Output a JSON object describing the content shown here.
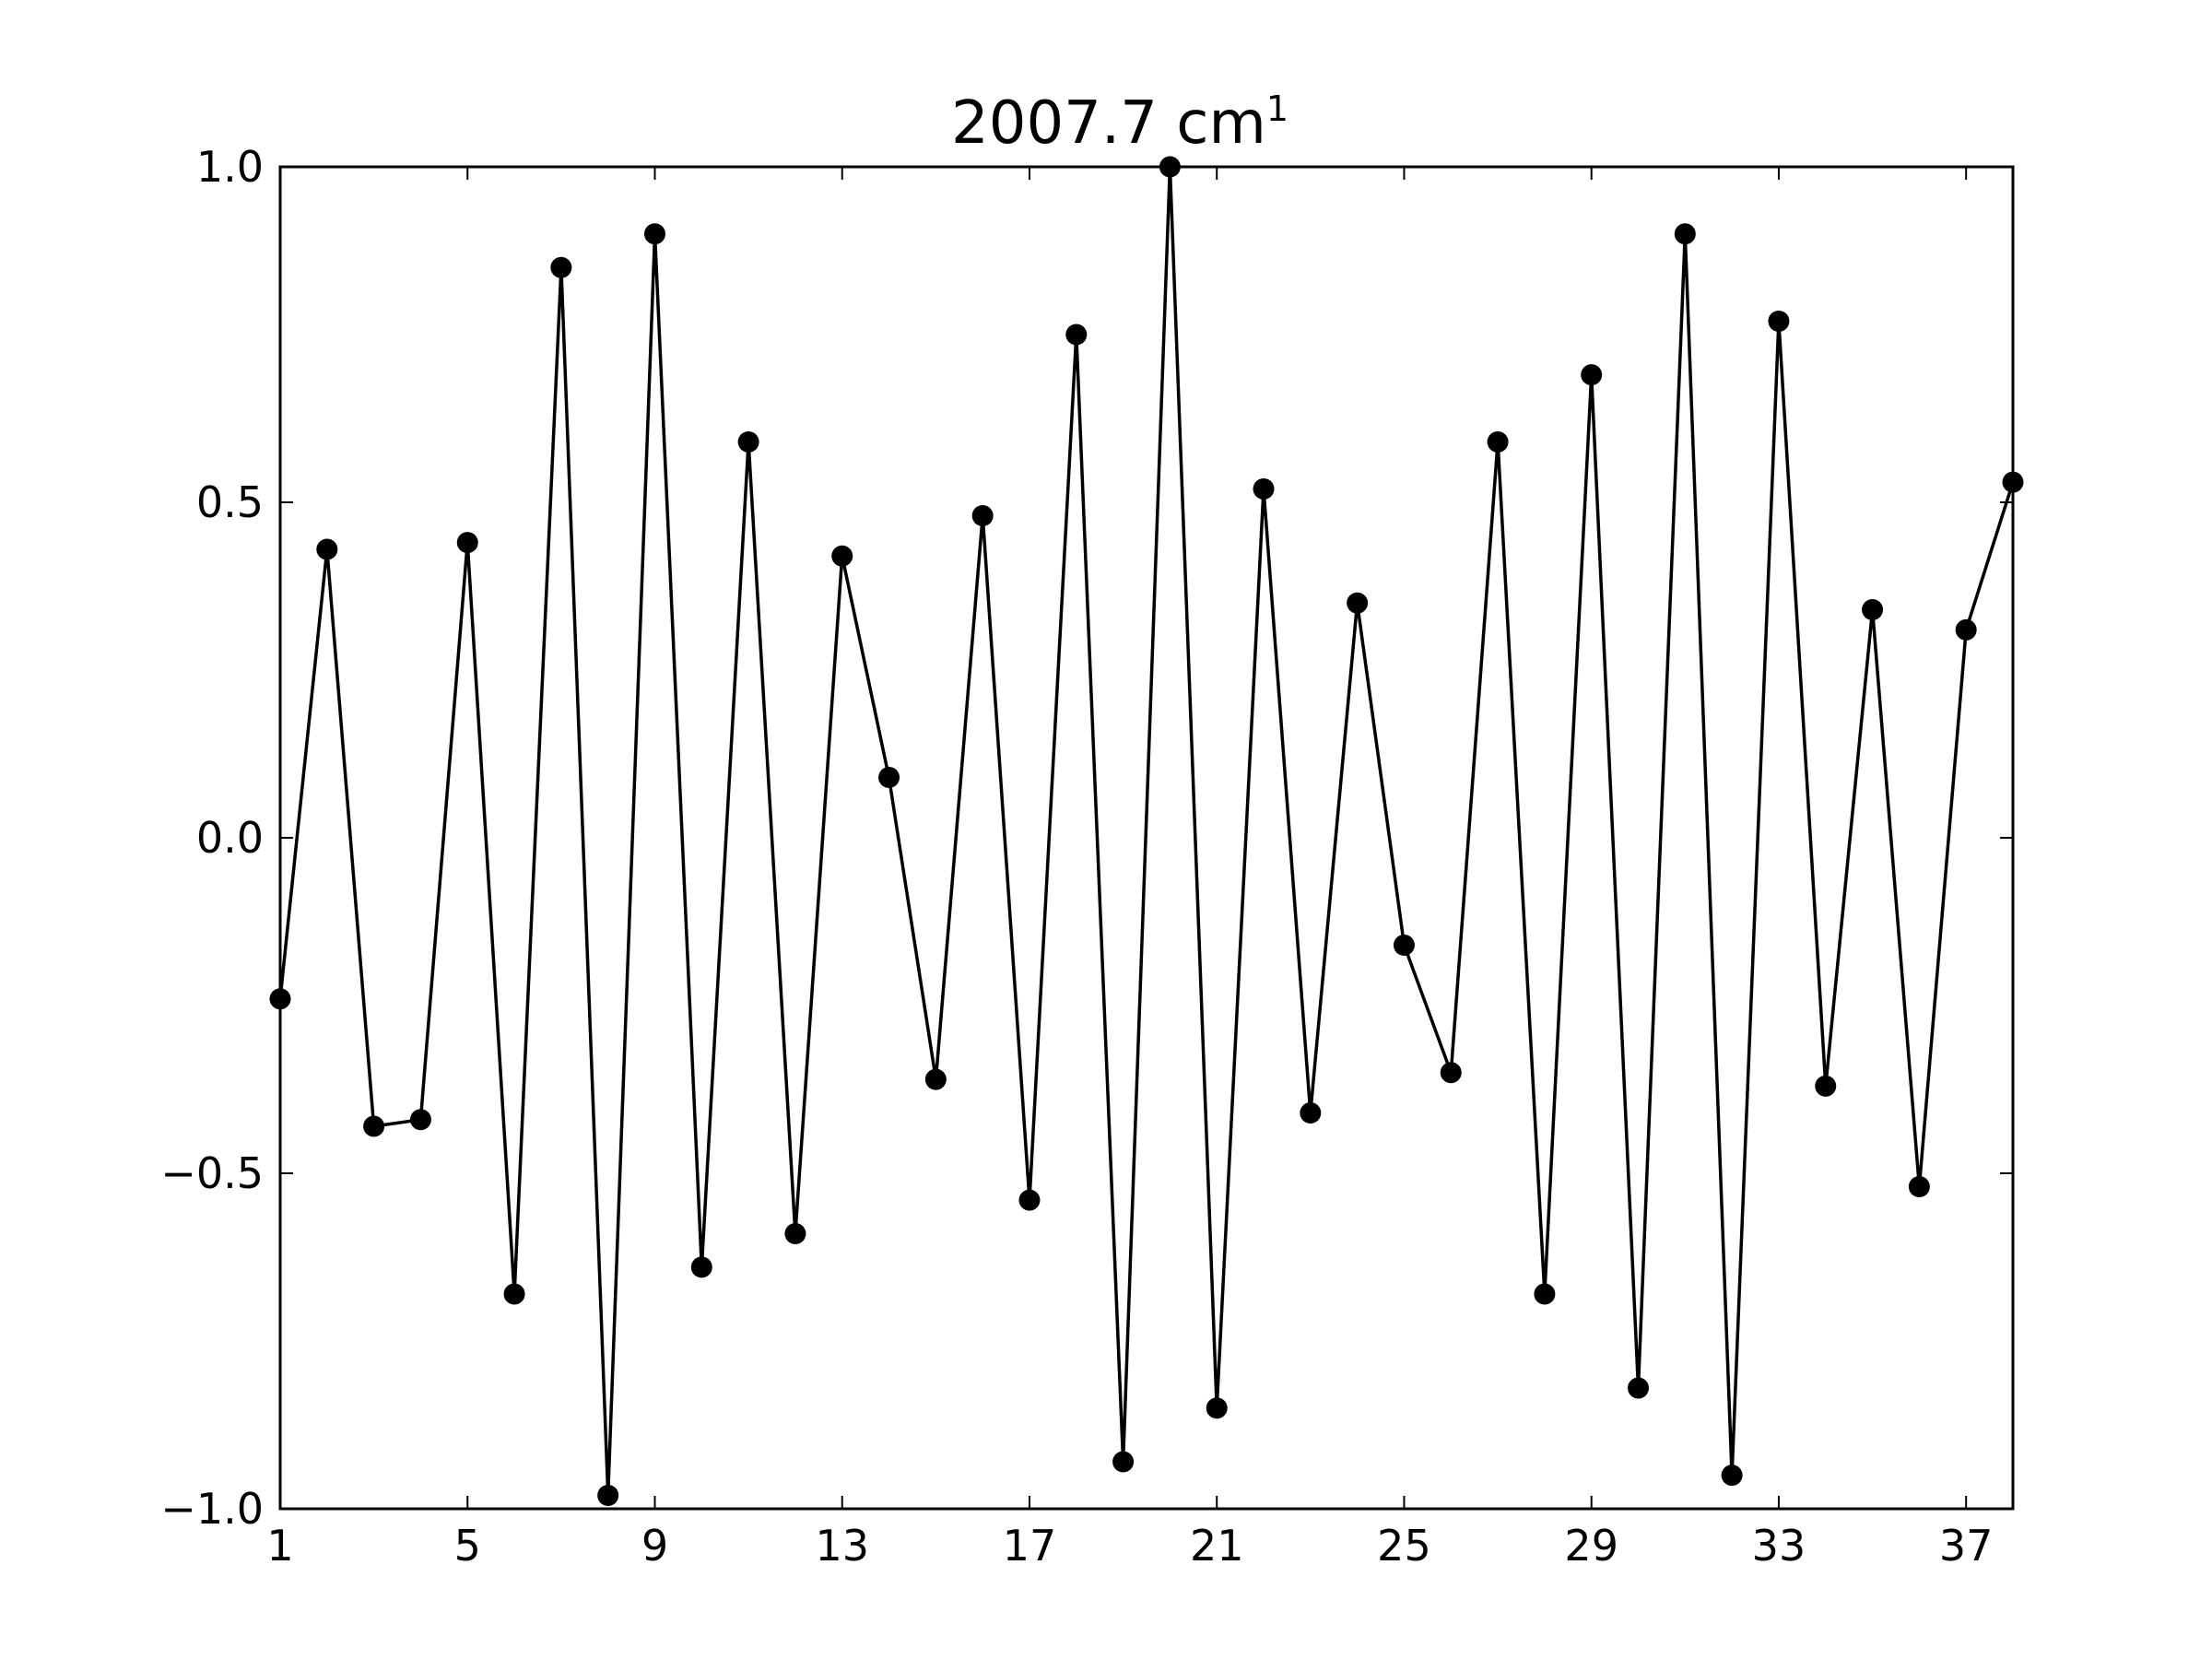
{
  "chart_data": {
    "type": "line",
    "title": "2007.7 cm",
    "title_superscript": "1",
    "xlabel": "",
    "ylabel": "",
    "xlim": [
      1,
      38
    ],
    "ylim": [
      -1.0,
      1.0
    ],
    "grid": false,
    "marker": "circle",
    "line_color": "#000000",
    "marker_color": "#000000",
    "x_ticks": [
      1,
      5,
      9,
      13,
      17,
      21,
      25,
      29,
      33,
      37
    ],
    "x_tick_labels": [
      "1",
      "5",
      "9",
      "13",
      "17",
      "21",
      "25",
      "29",
      "33",
      "37"
    ],
    "y_ticks": [
      1.0,
      0.5,
      0.0,
      -0.5,
      -1.0
    ],
    "y_tick_labels": [
      "1.0",
      "0.5",
      "0.0",
      "−0.5",
      "−1.0"
    ],
    "series": [
      {
        "x": [
          1,
          2,
          3,
          4,
          5,
          6,
          7,
          8,
          9,
          10,
          11,
          12,
          13,
          14,
          15,
          16,
          17,
          18,
          19,
          20,
          21,
          22,
          23,
          24,
          25,
          26,
          27,
          28,
          29,
          30,
          31,
          32,
          33,
          34,
          35,
          36,
          37,
          38
        ],
        "values": [
          -0.24,
          0.43,
          -0.43,
          -0.42,
          0.44,
          -0.68,
          0.85,
          -0.98,
          0.9,
          -0.64,
          0.59,
          -0.59,
          0.42,
          0.09,
          -0.36,
          0.48,
          -0.54,
          0.75,
          -0.93,
          1.0,
          -0.85,
          0.52,
          -0.41,
          0.35,
          -0.16,
          -0.35,
          0.59,
          -0.68,
          0.69,
          -0.82,
          0.9,
          -0.95,
          0.77,
          -0.37,
          0.34,
          -0.52,
          0.31,
          0.53
        ]
      }
    ]
  }
}
